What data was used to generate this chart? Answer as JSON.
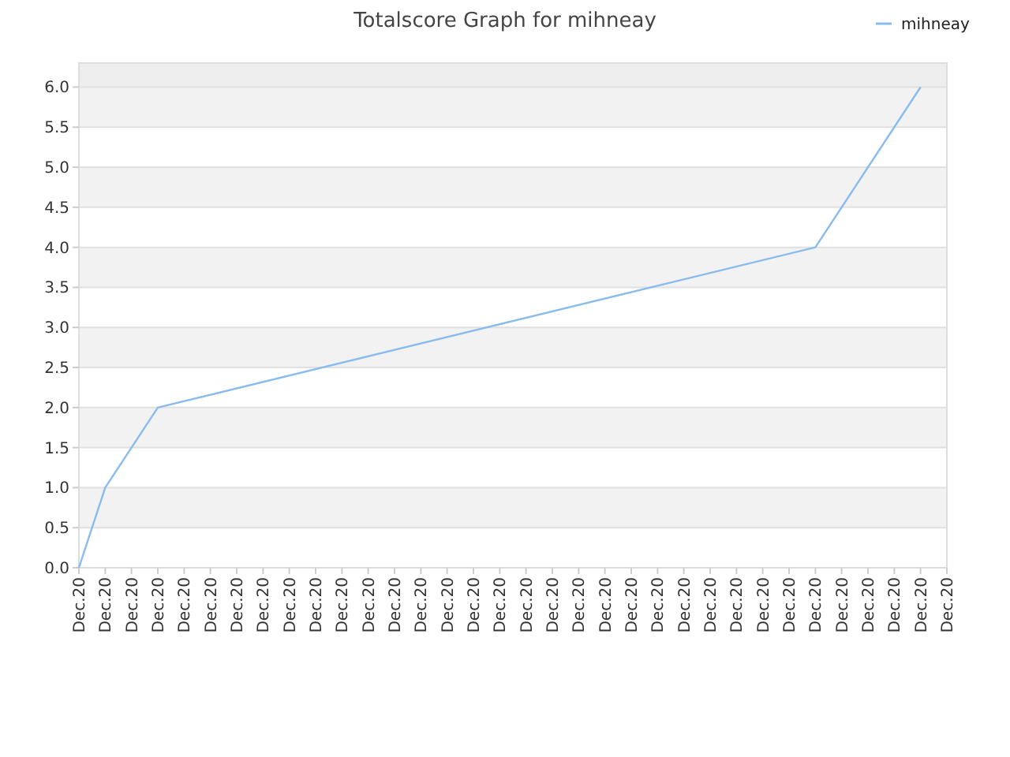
{
  "chart_data": {
    "type": "line",
    "title": "Totalscore Graph for mihneay",
    "categories": [
      "Dec.20",
      "Dec.20",
      "Dec.20",
      "Dec.20",
      "Dec.20",
      "Dec.20",
      "Dec.20",
      "Dec.20",
      "Dec.20",
      "Dec.20",
      "Dec.20",
      "Dec.20",
      "Dec.20",
      "Dec.20",
      "Dec.20",
      "Dec.20",
      "Dec.20",
      "Dec.20",
      "Dec.20",
      "Dec.20",
      "Dec.20",
      "Dec.20",
      "Dec.20",
      "Dec.20",
      "Dec.20",
      "Dec.20",
      "Dec.20",
      "Dec.20",
      "Dec.20",
      "Dec.20",
      "Dec.20",
      "Dec.20",
      "Dec.20",
      "Dec.20"
    ],
    "series": [
      {
        "name": "mihneay",
        "color": "#88bbee",
        "values": [
          0,
          1,
          null,
          2,
          null,
          null,
          null,
          null,
          null,
          null,
          null,
          null,
          null,
          null,
          null,
          null,
          null,
          null,
          null,
          null,
          null,
          null,
          null,
          null,
          null,
          null,
          null,
          null,
          4,
          null,
          null,
          null,
          6,
          null
        ]
      }
    ],
    "ylim": [
      0,
      6.3
    ],
    "yticks": [
      {
        "value": 0,
        "label": "0.0"
      },
      {
        "value": 0.5,
        "label": "0.5"
      },
      {
        "value": 1,
        "label": "1.0"
      },
      {
        "value": 1.5,
        "label": "1.5"
      },
      {
        "value": 2,
        "label": "2.0"
      },
      {
        "value": 2.5,
        "label": "2.5"
      },
      {
        "value": 3,
        "label": "3.0"
      },
      {
        "value": 3.5,
        "label": "3.5"
      },
      {
        "value": 4,
        "label": "4.0"
      },
      {
        "value": 4.5,
        "label": "4.5"
      },
      {
        "value": 5,
        "label": "5.0"
      },
      {
        "value": 5.5,
        "label": "5.5"
      },
      {
        "value": 6,
        "label": "6.0"
      }
    ],
    "grid": "y",
    "legend": "top right",
    "marker": "none",
    "line_style": "solid"
  }
}
